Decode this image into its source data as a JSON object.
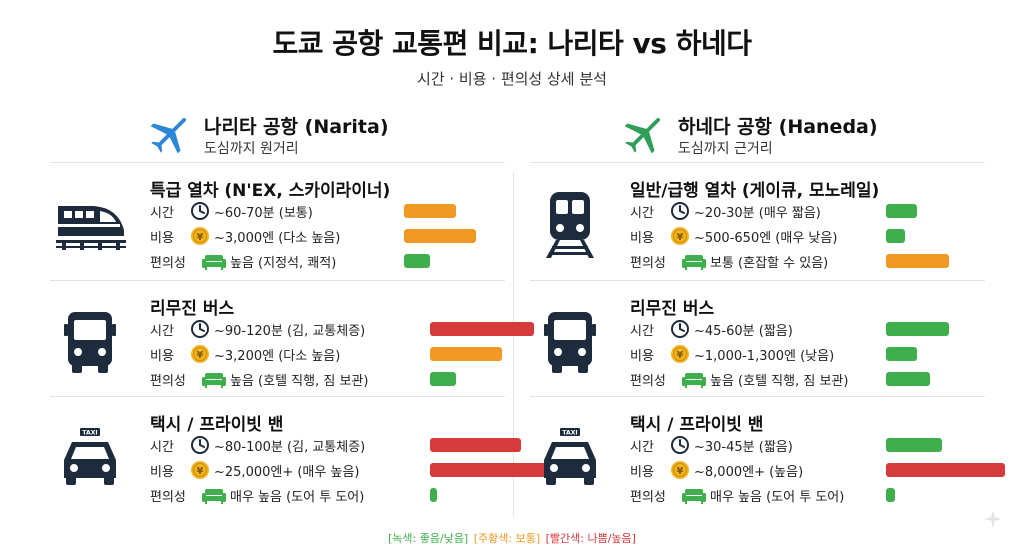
{
  "title": "도쿄 공항 교통편 비교: 나리타 vs 하네다",
  "subtitle": "시간 · 비용 · 편의성 상세 분석",
  "colors": {
    "green": "#3fae4d",
    "orange": "#f09a25",
    "red": "#d63b3b",
    "navy": "#1e2b3c",
    "plane_blue": "#2e87d6",
    "plane_green": "#2f9e57",
    "coin": "#f2b320"
  },
  "labels": {
    "time": "시간",
    "cost": "비용",
    "convenience": "편의성"
  },
  "airports": [
    {
      "name": "나리타 공항 (Narita)",
      "sub": "도심까지 원거리",
      "plane_icon": "airplane-icon-blue",
      "modes": [
        {
          "name": "특급 열차 (N'EX, 스카이라이너)",
          "icon": "express-train-icon",
          "time": {
            "text": "~60-70분 (보통)",
            "level": 0.4,
            "color": "orange"
          },
          "cost": {
            "text": "~3,000엔 (다소 높음)",
            "level": 0.55,
            "color": "orange"
          },
          "conv": {
            "text": "높음 (지정석, 쾌적)",
            "level": 0.2,
            "color": "green"
          }
        },
        {
          "name": "리무진 버스",
          "icon": "bus-icon",
          "time": {
            "text": "~90-120분 (김, 교통체증)",
            "level": 0.8,
            "color": "red"
          },
          "cost": {
            "text": "~3,200엔 (다소 높음)",
            "level": 0.55,
            "color": "orange"
          },
          "conv": {
            "text": "높음 (호텔 직행, 짐 보관)",
            "level": 0.2,
            "color": "green"
          }
        },
        {
          "name": "택시 / 프라이빗 밴",
          "icon": "taxi-icon",
          "time": {
            "text": "~80-100분 (김, 교통체증)",
            "level": 0.7,
            "color": "red"
          },
          "cost": {
            "text": "~25,000엔+ (매우 높음)",
            "level": 0.9,
            "color": "red"
          },
          "conv": {
            "text": "매우 높음 (도어 투 도어)",
            "level": 0.05,
            "color": "green"
          }
        }
      ]
    },
    {
      "name": "하네다 공항 (Haneda)",
      "sub": "도심까지 근거리",
      "plane_icon": "airplane-icon-green",
      "modes": [
        {
          "name": "일반/급행 열차 (게이큐, 모노레일)",
          "icon": "train-icon",
          "time": {
            "text": "~20-30분 (매우 짧음)",
            "level": 0.25,
            "color": "green"
          },
          "cost": {
            "text": "~500-650엔 (매우 낮음)",
            "level": 0.15,
            "color": "green"
          },
          "conv": {
            "text": "보통 (혼잡할 수 있음)",
            "level": 0.5,
            "color": "orange"
          }
        },
        {
          "name": "리무진 버스",
          "icon": "bus-icon",
          "time": {
            "text": "~45-60분 (짧음)",
            "level": 0.5,
            "color": "green"
          },
          "cost": {
            "text": "~1,000-1,300엔 (낮음)",
            "level": 0.25,
            "color": "green"
          },
          "conv": {
            "text": "높음 (호텔 직행, 짐 보관)",
            "level": 0.35,
            "color": "green"
          }
        },
        {
          "name": "택시 / 프라이빗 밴",
          "icon": "taxi-icon",
          "time": {
            "text": "~30-45분 (짧음)",
            "level": 0.45,
            "color": "green"
          },
          "cost": {
            "text": "~8,000엔+ (높음)",
            "level": 0.95,
            "color": "red"
          },
          "conv": {
            "text": "매우 높음 (도어 투 도어)",
            "level": 0.07,
            "color": "green"
          }
        }
      ]
    }
  ],
  "legend": {
    "green": "[녹색: 좋음/낮음]",
    "orange": "[주황색: 보통]",
    "red": "[빨간색: 나쁨/높음]"
  },
  "taxi_sign": "TAXI"
}
